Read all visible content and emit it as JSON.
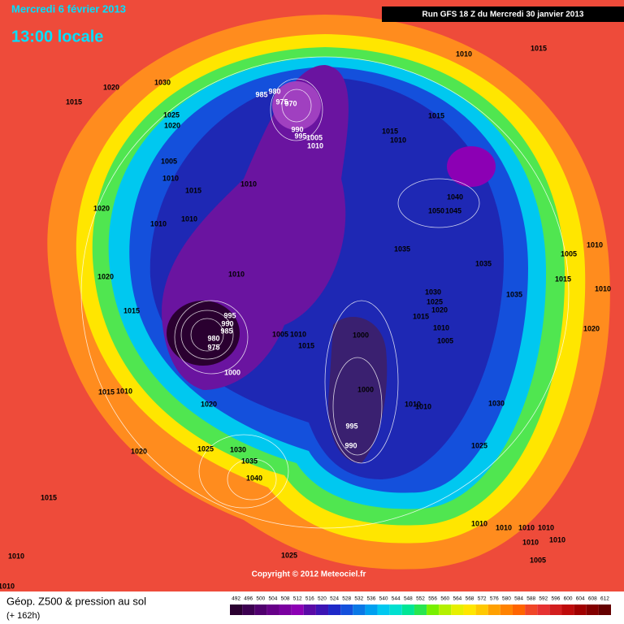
{
  "header": {
    "date": "Mercredi 6 février 2013",
    "time": "13:00 locale",
    "run": "Run GFS 18 Z du Mercredi 30 janvier 2013"
  },
  "copyright": "Copyright © 2012 Meteociel.fr",
  "footer": {
    "title": "Géop. Z500 & pression au sol",
    "lead": "(+ 162h)"
  },
  "legend": {
    "values": [
      492,
      496,
      500,
      504,
      508,
      512,
      516,
      520,
      524,
      528,
      532,
      536,
      540,
      544,
      548,
      552,
      556,
      560,
      564,
      568,
      572,
      576,
      580,
      584,
      588,
      592,
      596,
      600,
      604,
      608,
      612
    ],
    "colors": [
      "#2a0030",
      "#3c0050",
      "#50006e",
      "#660088",
      "#7a00a0",
      "#8c00b4",
      "#5a0aa6",
      "#3c14b4",
      "#1e28c8",
      "#1450dc",
      "#0a78e6",
      "#00a0f0",
      "#00c8f0",
      "#00e0d0",
      "#00e696",
      "#28e650",
      "#78f000",
      "#b4f000",
      "#e6f000",
      "#ffe600",
      "#ffc800",
      "#ffa000",
      "#ff8200",
      "#ff6400",
      "#f04628",
      "#e63232",
      "#d21e1e",
      "#be0a0a",
      "#a00000",
      "#820000",
      "#640000"
    ]
  },
  "isobar_labels": [
    1020,
    1030,
    1015,
    1025,
    1020,
    1005,
    1010,
    1015,
    1010,
    1020,
    1010,
    1010,
    1020,
    1015,
    1010,
    985,
    980,
    975,
    970,
    990,
    995,
    1005,
    1010,
    1015,
    1010,
    1015,
    1010,
    1015,
    1040,
    1050,
    1045,
    1035,
    1035,
    1030,
    1025,
    1015,
    1020,
    1035,
    1010,
    1005,
    1010,
    1005,
    1015,
    1010,
    1020,
    995,
    990,
    985,
    980,
    975,
    1005,
    1010,
    1015,
    1000,
    1000,
    1000,
    1010,
    1010,
    995,
    990,
    1030,
    1025,
    1015,
    1010,
    1020,
    1020,
    1025,
    1030,
    1035,
    1040,
    1015,
    1010,
    1010,
    1025,
    1010,
    1010,
    1010,
    1010,
    1010,
    1010,
    1005
  ]
}
